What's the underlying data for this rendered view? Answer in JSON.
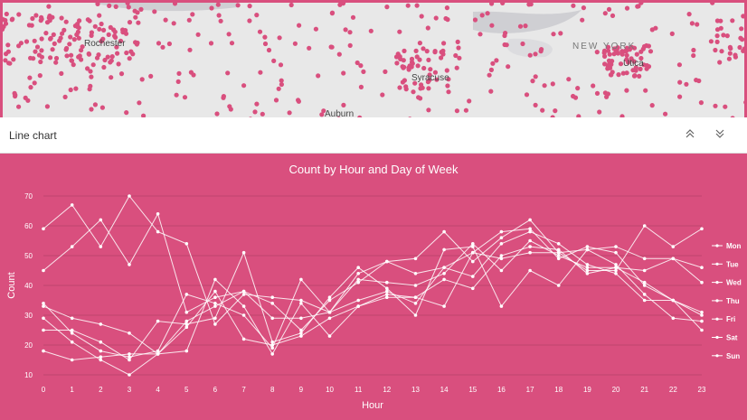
{
  "map": {
    "labels": {
      "rochester": "Rochester",
      "syracuse": "Syracuse",
      "auburn": "Auburn",
      "state": "NEW YORK",
      "utica": "Utica"
    },
    "colors": {
      "point": "#d94f7e",
      "background": "#e8e8e8",
      "water": "#cfcfd3"
    }
  },
  "panel": {
    "title": "Line chart",
    "collapse_icon": "chevrons-up-icon",
    "expand_icon": "chevrons-down-icon"
  },
  "chart_data": {
    "type": "line",
    "title": "Count by Hour and Day of Week",
    "xlabel": "Hour",
    "ylabel": "Count",
    "ylim": [
      10,
      70
    ],
    "yticks": [
      10,
      20,
      30,
      40,
      50,
      60,
      70
    ],
    "grid": true,
    "legend_position": "right",
    "background": "#d94f7e",
    "line_color": "#ffffff",
    "x": [
      0,
      1,
      2,
      3,
      4,
      5,
      6,
      7,
      8,
      9,
      10,
      11,
      12,
      13,
      14,
      15,
      16,
      17,
      18,
      19,
      20,
      21,
      22,
      23
    ],
    "series": [
      {
        "name": "Mon",
        "values": [
          59,
          67,
          53,
          70,
          58,
          54,
          27,
          37,
          36,
          35,
          31,
          44,
          48,
          44,
          46,
          51,
          58,
          59,
          49,
          53,
          51,
          40,
          35,
          25
        ]
      },
      {
        "name": "Tue",
        "values": [
          45,
          53,
          62,
          47,
          64,
          31,
          36,
          38,
          34,
          25,
          35,
          41,
          48,
          49,
          58,
          48,
          56,
          62,
          51,
          45,
          45,
          60,
          53,
          59
        ]
      },
      {
        "name": "Wed",
        "values": [
          34,
          24,
          18,
          16,
          18,
          37,
          34,
          30,
          19,
          42,
          31,
          35,
          38,
          34,
          46,
          43,
          54,
          58,
          54,
          47,
          44,
          35,
          35,
          30
        ]
      },
      {
        "name": "Thu",
        "values": [
          33,
          29,
          27,
          24,
          17,
          28,
          33,
          38,
          29,
          29,
          31,
          42,
          41,
          40,
          44,
          54,
          45,
          55,
          50,
          46,
          46,
          41,
          35,
          31
        ]
      },
      {
        "name": "Fri",
        "values": [
          18,
          15,
          16,
          17,
          17,
          18,
          42,
          33,
          17,
          34,
          23,
          33,
          37,
          36,
          33,
          51,
          49,
          51,
          51,
          52,
          53,
          49,
          49,
          46
        ]
      },
      {
        "name": "Sat",
        "values": [
          25,
          25,
          21,
          15,
          28,
          27,
          29,
          51,
          21,
          24,
          36,
          46,
          39,
          30,
          52,
          53,
          33,
          45,
          40,
          52,
          47,
          37,
          29,
          28
        ]
      },
      {
        "name": "Sun",
        "values": [
          29,
          21,
          15,
          10,
          17,
          26,
          38,
          22,
          20,
          23,
          29,
          33,
          36,
          36,
          42,
          39,
          50,
          53,
          52,
          44,
          46,
          45,
          49,
          41
        ]
      }
    ]
  }
}
